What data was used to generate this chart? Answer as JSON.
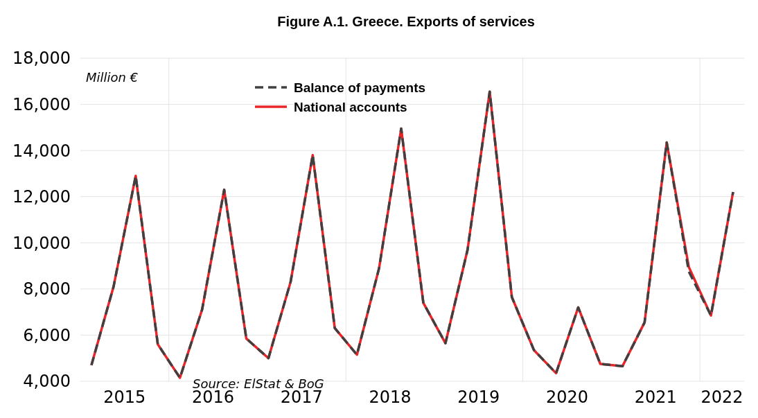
{
  "chart_data": {
    "type": "line",
    "title": "Figure A.1. Greece. Exports of services",
    "annotations": [
      "Million €",
      "Source: ElStat & BoG"
    ],
    "x": [
      2015.125,
      2015.375,
      2015.625,
      2015.875,
      2016.125,
      2016.375,
      2016.625,
      2016.875,
      2017.125,
      2017.375,
      2017.625,
      2017.875,
      2018.125,
      2018.375,
      2018.625,
      2018.875,
      2019.125,
      2019.375,
      2019.625,
      2019.875,
      2020.125,
      2020.375,
      2020.625,
      2020.875,
      2021.125,
      2021.375,
      2021.625,
      2021.875,
      2022.125,
      2022.375
    ],
    "series": [
      {
        "name": "Balance of payments",
        "color": "#404040",
        "line_style": "dashed",
        "values": [
          4700,
          8100,
          12900,
          5600,
          4150,
          7100,
          12300,
          5850,
          5000,
          8300,
          13800,
          6300,
          5150,
          8900,
          14950,
          7400,
          5650,
          9700,
          16550,
          7650,
          5350,
          4350,
          7200,
          4750,
          4650,
          6550,
          14350,
          8750,
          6850,
          12200
        ]
      },
      {
        "name": "National accounts",
        "color": "#e8262a",
        "line_style": "solid",
        "values": [
          4700,
          8100,
          12900,
          5600,
          4150,
          7100,
          12300,
          5850,
          5000,
          8300,
          13800,
          6300,
          5150,
          8900,
          14950,
          7400,
          5650,
          9700,
          16550,
          7650,
          5350,
          4350,
          7200,
          4750,
          4650,
          6550,
          14350,
          8950,
          6850,
          12200
        ]
      }
    ],
    "xlim": [
      2015,
      2022.5
    ],
    "xticks": [
      {
        "value": 2015.5,
        "label": "2015"
      },
      {
        "value": 2016,
        "label": null
      },
      {
        "value": 2016.5,
        "label": "2016"
      },
      {
        "value": 2017.5,
        "label": "2017"
      },
      {
        "value": 2018,
        "label": null
      },
      {
        "value": 2018.5,
        "label": "2018"
      },
      {
        "value": 2019.5,
        "label": "2019"
      },
      {
        "value": 2020,
        "label": null
      },
      {
        "value": 2020.5,
        "label": "2020"
      },
      {
        "value": 2021.5,
        "label": "2021"
      },
      {
        "value": 2022,
        "label": null
      },
      {
        "value": 2022.25,
        "label": "2022"
      }
    ],
    "ylim": [
      4000,
      18000
    ],
    "yticks": [
      {
        "value": 4000,
        "label": "4,000"
      },
      {
        "value": 6000,
        "label": "6,000"
      },
      {
        "value": 8000,
        "label": "8,000"
      },
      {
        "value": 10000,
        "label": "10,000"
      },
      {
        "value": 12000,
        "label": "12,000"
      },
      {
        "value": 14000,
        "label": "14,000"
      },
      {
        "value": 16000,
        "label": "16,000"
      },
      {
        "value": 18000,
        "label": "18,000"
      }
    ],
    "grid": true,
    "legend": "top",
    "marker": "none"
  }
}
